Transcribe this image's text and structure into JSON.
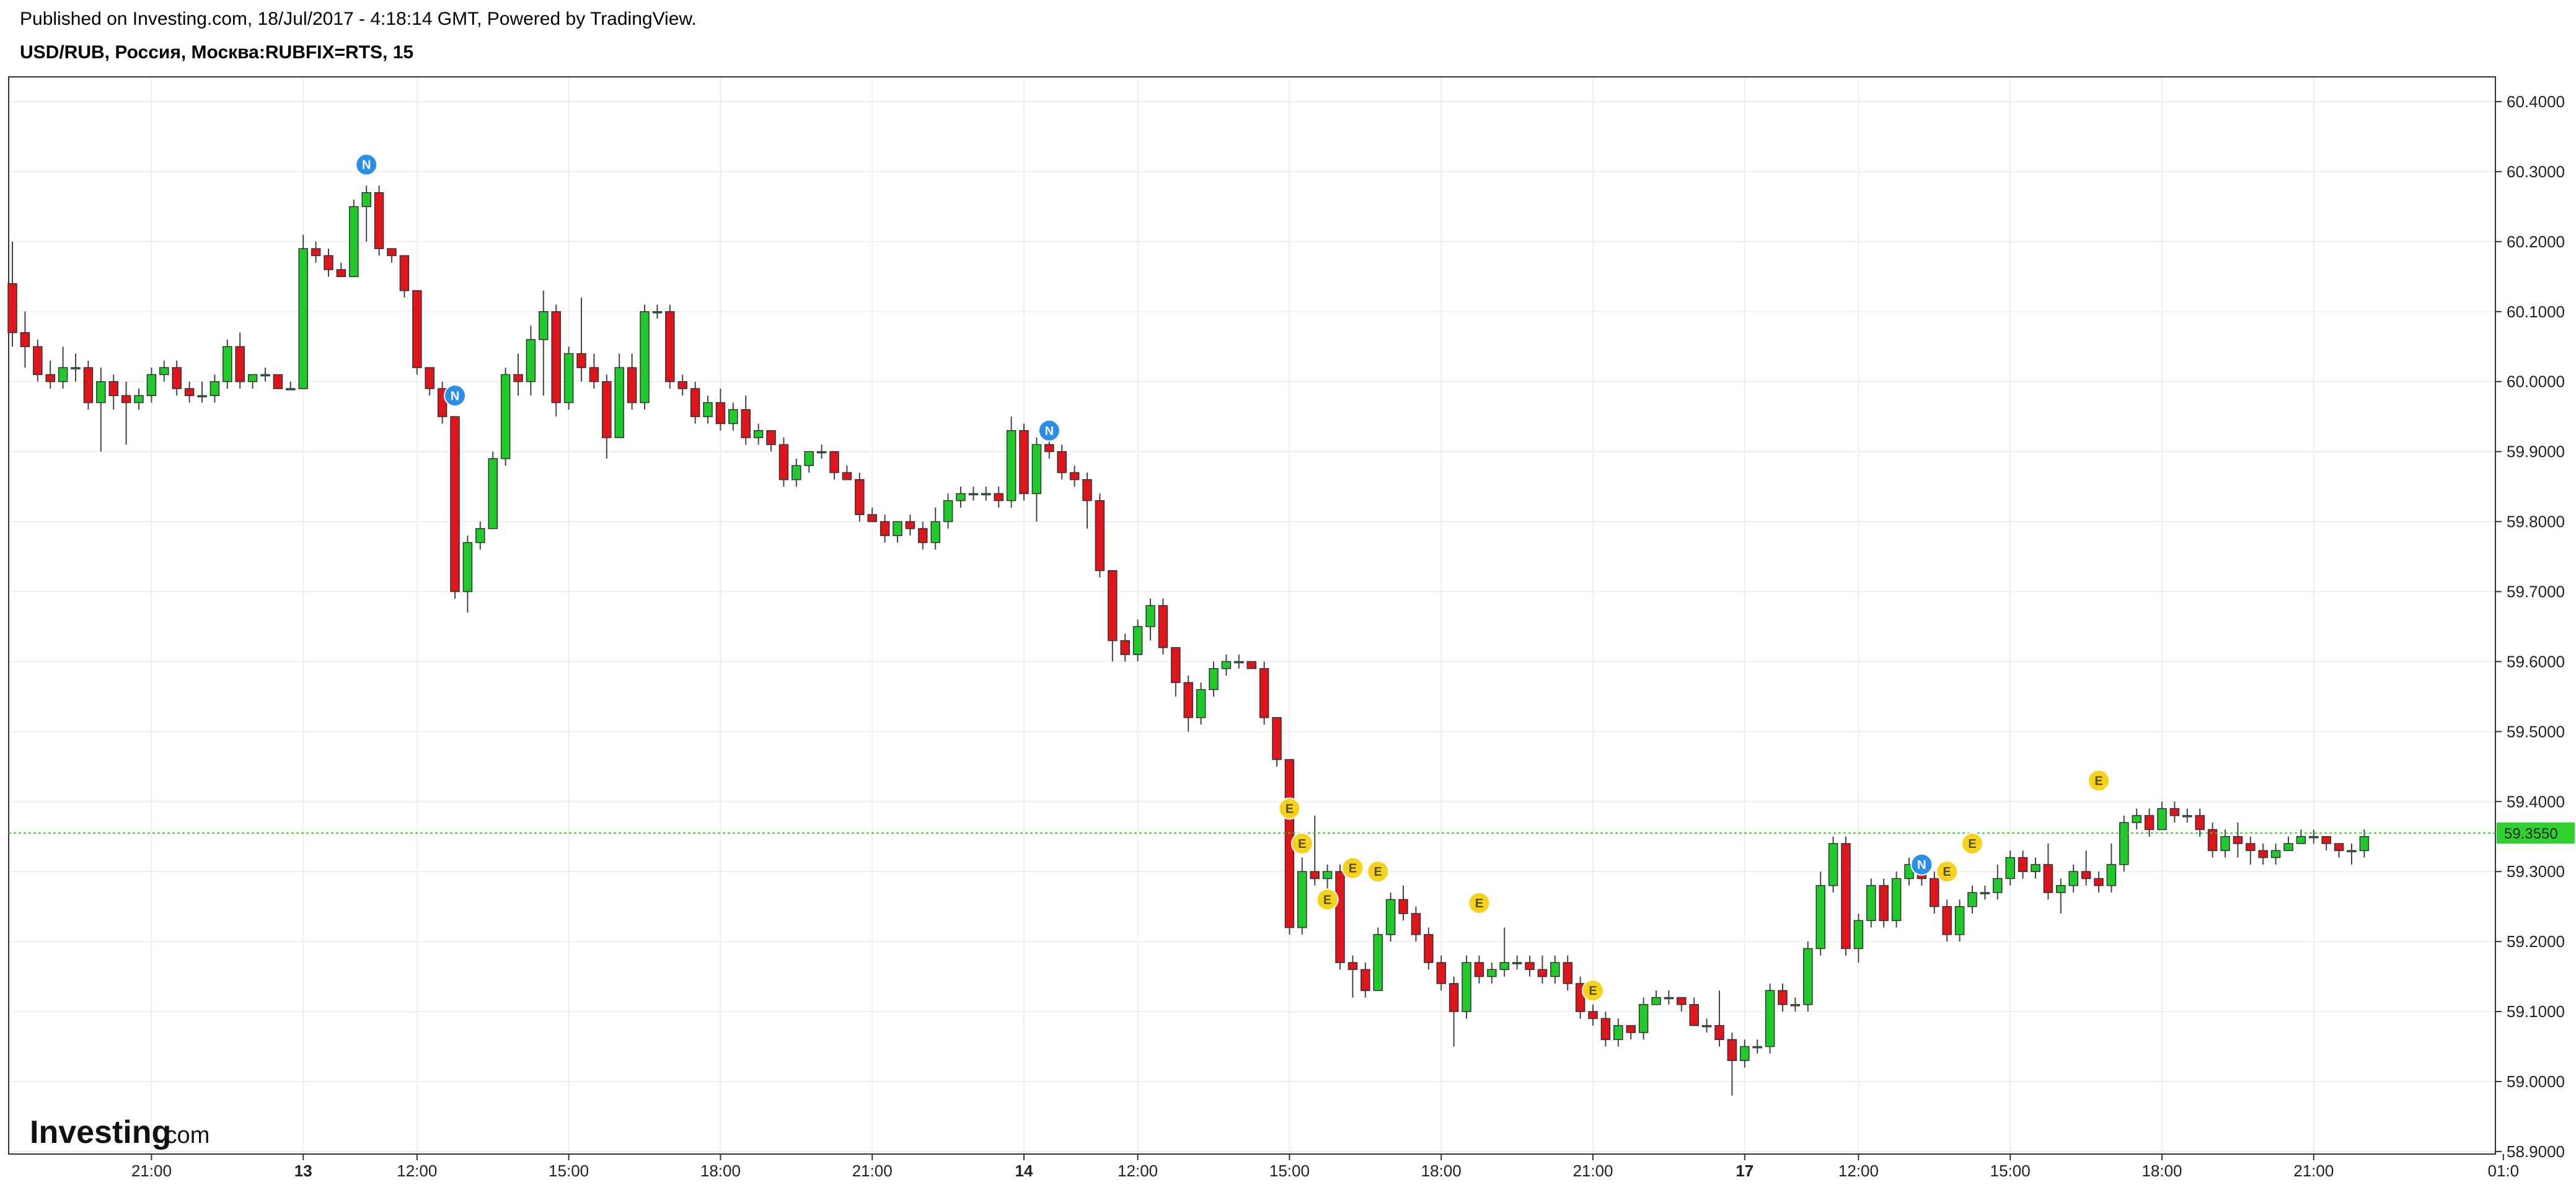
{
  "header": {
    "published": "Published on Investing.com, 18/Jul/2017 - 4:18:14 GMT, Powered by TradingView.",
    "symbol": "USD/RUB, Россия, Москва:RUBFIX=RTS, 15"
  },
  "logo": {
    "main": "Investing",
    "sub": ".com"
  },
  "colors": {
    "up": "#1ecb2a",
    "down": "#e0141b",
    "grid": "#eeeeee",
    "border": "#333333",
    "current_line": "#2ed12e",
    "news": "#2b8fea",
    "event": "#f7d21b"
  },
  "chart_data": {
    "type": "candlestick",
    "y_ticks": [
      "60.4000",
      "60.3000",
      "60.2000",
      "60.1000",
      "60.0000",
      "59.9000",
      "59.8000",
      "59.7000",
      "59.6000",
      "59.5000",
      "59.4000",
      "59.3000",
      "59.2000",
      "59.1000",
      "59.0000",
      "58.9000"
    ],
    "ylim": [
      58.89,
      60.43
    ],
    "x_ticks": [
      {
        "label": "21:00",
        "i": 11,
        "bold": false
      },
      {
        "label": "13",
        "i": 23,
        "bold": true
      },
      {
        "label": "12:00",
        "i": 32,
        "bold": false
      },
      {
        "label": "15:00",
        "i": 44,
        "bold": false
      },
      {
        "label": "18:00",
        "i": 56,
        "bold": false
      },
      {
        "label": "21:00",
        "i": 68,
        "bold": false
      },
      {
        "label": "14",
        "i": 80,
        "bold": true
      },
      {
        "label": "12:00",
        "i": 89,
        "bold": false
      },
      {
        "label": "15:00",
        "i": 101,
        "bold": false
      },
      {
        "label": "18:00",
        "i": 113,
        "bold": false
      },
      {
        "label": "21:00",
        "i": 125,
        "bold": false
      },
      {
        "label": "17",
        "i": 137,
        "bold": true
      },
      {
        "label": "12:00",
        "i": 146,
        "bold": false
      },
      {
        "label": "15:00",
        "i": 158,
        "bold": false
      },
      {
        "label": "18:00",
        "i": 170,
        "bold": false
      },
      {
        "label": "21:00",
        "i": 182,
        "bold": false
      },
      {
        "label": "01:0",
        "i": 197,
        "bold": false
      }
    ],
    "current_price": 59.355,
    "current_price_label": "59.3550",
    "candles": [
      [
        60.14,
        60.07,
        60.2,
        60.05
      ],
      [
        60.07,
        60.05,
        60.1,
        60.02
      ],
      [
        60.05,
        60.01,
        60.06,
        60.0
      ],
      [
        60.01,
        60.0,
        60.03,
        59.99
      ],
      [
        60.0,
        60.02,
        60.05,
        59.99
      ],
      [
        60.02,
        60.02,
        60.04,
        60.0
      ],
      [
        60.02,
        59.97,
        60.03,
        59.96
      ],
      [
        59.97,
        60.0,
        60.02,
        59.9
      ],
      [
        60.0,
        59.98,
        60.01,
        59.96
      ],
      [
        59.98,
        59.97,
        60.0,
        59.91
      ],
      [
        59.97,
        59.98,
        59.99,
        59.96
      ],
      [
        59.98,
        60.01,
        60.02,
        59.97
      ],
      [
        60.01,
        60.02,
        60.03,
        60.0
      ],
      [
        60.02,
        59.99,
        60.03,
        59.98
      ],
      [
        59.99,
        59.98,
        60.0,
        59.97
      ],
      [
        59.98,
        59.98,
        60.0,
        59.97
      ],
      [
        59.98,
        60.0,
        60.01,
        59.97
      ],
      [
        60.0,
        60.05,
        60.06,
        59.99
      ],
      [
        60.05,
        60.0,
        60.07,
        59.99
      ],
      [
        60.0,
        60.01,
        60.01,
        59.99
      ],
      [
        60.01,
        60.01,
        60.02,
        60.0
      ],
      [
        60.01,
        59.99,
        60.01,
        59.99
      ],
      [
        59.99,
        59.99,
        60.0,
        59.99
      ],
      [
        59.99,
        60.19,
        60.21,
        59.99
      ],
      [
        60.19,
        60.18,
        60.2,
        60.17
      ],
      [
        60.18,
        60.16,
        60.19,
        60.15
      ],
      [
        60.16,
        60.15,
        60.17,
        60.15
      ],
      [
        60.15,
        60.25,
        60.26,
        60.15
      ],
      [
        60.25,
        60.27,
        60.28,
        60.2
      ],
      [
        60.27,
        60.19,
        60.28,
        60.18
      ],
      [
        60.19,
        60.18,
        60.19,
        60.17
      ],
      [
        60.18,
        60.13,
        60.18,
        60.12
      ],
      [
        60.13,
        60.02,
        60.13,
        60.01
      ],
      [
        60.02,
        59.99,
        60.02,
        59.98
      ],
      [
        59.99,
        59.95,
        60.0,
        59.94
      ],
      [
        59.95,
        59.7,
        59.95,
        59.69
      ],
      [
        59.7,
        59.77,
        59.78,
        59.67
      ],
      [
        59.77,
        59.79,
        59.8,
        59.76
      ],
      [
        59.79,
        59.89,
        59.9,
        59.79
      ],
      [
        59.89,
        60.01,
        60.02,
        59.88
      ],
      [
        60.01,
        60.0,
        60.04,
        59.98
      ],
      [
        60.0,
        60.06,
        60.08,
        59.98
      ],
      [
        60.06,
        60.1,
        60.13,
        59.98
      ],
      [
        60.1,
        59.97,
        60.11,
        59.95
      ],
      [
        59.97,
        60.04,
        60.05,
        59.96
      ],
      [
        60.04,
        60.02,
        60.12,
        60.0
      ],
      [
        60.02,
        60.0,
        60.04,
        59.99
      ],
      [
        60.0,
        59.92,
        60.01,
        59.89
      ],
      [
        59.92,
        60.02,
        60.04,
        59.92
      ],
      [
        60.02,
        59.97,
        60.04,
        59.96
      ],
      [
        59.97,
        60.1,
        60.11,
        59.96
      ],
      [
        60.1,
        60.1,
        60.11,
        60.09
      ],
      [
        60.1,
        60.0,
        60.11,
        59.99
      ],
      [
        60.0,
        59.99,
        60.01,
        59.98
      ],
      [
        59.99,
        59.95,
        60.0,
        59.94
      ],
      [
        59.95,
        59.97,
        59.98,
        59.94
      ],
      [
        59.97,
        59.94,
        59.99,
        59.93
      ],
      [
        59.94,
        59.96,
        59.97,
        59.93
      ],
      [
        59.96,
        59.92,
        59.98,
        59.91
      ],
      [
        59.92,
        59.93,
        59.94,
        59.91
      ],
      [
        59.93,
        59.91,
        59.93,
        59.9
      ],
      [
        59.91,
        59.86,
        59.92,
        59.85
      ],
      [
        59.86,
        59.88,
        59.89,
        59.85
      ],
      [
        59.88,
        59.9,
        59.9,
        59.87
      ],
      [
        59.9,
        59.9,
        59.91,
        59.89
      ],
      [
        59.9,
        59.87,
        59.9,
        59.86
      ],
      [
        59.87,
        59.86,
        59.88,
        59.86
      ],
      [
        59.86,
        59.81,
        59.87,
        59.8
      ],
      [
        59.81,
        59.8,
        59.82,
        59.8
      ],
      [
        59.8,
        59.78,
        59.81,
        59.77
      ],
      [
        59.78,
        59.8,
        59.8,
        59.77
      ],
      [
        59.8,
        59.79,
        59.81,
        59.78
      ],
      [
        59.79,
        59.77,
        59.8,
        59.76
      ],
      [
        59.77,
        59.8,
        59.82,
        59.76
      ],
      [
        59.8,
        59.83,
        59.84,
        59.79
      ],
      [
        59.83,
        59.84,
        59.85,
        59.82
      ],
      [
        59.84,
        59.84,
        59.85,
        59.83
      ],
      [
        59.84,
        59.84,
        59.85,
        59.83
      ],
      [
        59.84,
        59.83,
        59.85,
        59.82
      ],
      [
        59.83,
        59.93,
        59.95,
        59.82
      ],
      [
        59.93,
        59.84,
        59.94,
        59.83
      ],
      [
        59.84,
        59.91,
        59.92,
        59.8
      ],
      [
        59.91,
        59.9,
        59.92,
        59.89
      ],
      [
        59.9,
        59.87,
        59.91,
        59.86
      ],
      [
        59.87,
        59.86,
        59.88,
        59.85
      ],
      [
        59.86,
        59.83,
        59.87,
        59.79
      ],
      [
        59.83,
        59.73,
        59.84,
        59.72
      ],
      [
        59.73,
        59.63,
        59.73,
        59.6
      ],
      [
        59.63,
        59.61,
        59.64,
        59.6
      ],
      [
        59.61,
        59.65,
        59.66,
        59.6
      ],
      [
        59.65,
        59.68,
        59.69,
        59.63
      ],
      [
        59.68,
        59.62,
        59.69,
        59.61
      ],
      [
        59.62,
        59.57,
        59.62,
        59.55
      ],
      [
        59.57,
        59.52,
        59.58,
        59.5
      ],
      [
        59.52,
        59.56,
        59.57,
        59.51
      ],
      [
        59.56,
        59.59,
        59.6,
        59.55
      ],
      [
        59.59,
        59.6,
        59.61,
        59.58
      ],
      [
        59.6,
        59.6,
        59.61,
        59.59
      ],
      [
        59.6,
        59.59,
        59.6,
        59.59
      ],
      [
        59.59,
        59.52,
        59.6,
        59.51
      ],
      [
        59.52,
        59.46,
        59.52,
        59.45
      ],
      [
        59.46,
        59.22,
        59.46,
        59.21
      ],
      [
        59.22,
        59.3,
        59.32,
        59.21
      ],
      [
        59.3,
        59.29,
        59.38,
        59.28
      ],
      [
        59.29,
        59.3,
        59.31,
        59.25
      ],
      [
        59.3,
        59.17,
        59.31,
        59.16
      ],
      [
        59.17,
        59.16,
        59.18,
        59.12
      ],
      [
        59.16,
        59.13,
        59.17,
        59.12
      ],
      [
        59.13,
        59.21,
        59.22,
        59.13
      ],
      [
        59.21,
        59.26,
        59.27,
        59.2
      ],
      [
        59.26,
        59.24,
        59.28,
        59.23
      ],
      [
        59.24,
        59.21,
        59.25,
        59.2
      ],
      [
        59.21,
        59.17,
        59.22,
        59.16
      ],
      [
        59.17,
        59.14,
        59.18,
        59.13
      ],
      [
        59.14,
        59.1,
        59.15,
        59.05
      ],
      [
        59.1,
        59.17,
        59.18,
        59.09
      ],
      [
        59.17,
        59.15,
        59.18,
        59.14
      ],
      [
        59.15,
        59.16,
        59.17,
        59.14
      ],
      [
        59.16,
        59.17,
        59.22,
        59.15
      ],
      [
        59.17,
        59.17,
        59.18,
        59.16
      ],
      [
        59.17,
        59.16,
        59.18,
        59.15
      ],
      [
        59.16,
        59.15,
        59.18,
        59.14
      ],
      [
        59.15,
        59.17,
        59.18,
        59.14
      ],
      [
        59.17,
        59.14,
        59.18,
        59.13
      ],
      [
        59.14,
        59.1,
        59.15,
        59.09
      ],
      [
        59.1,
        59.09,
        59.11,
        59.08
      ],
      [
        59.09,
        59.06,
        59.1,
        59.05
      ],
      [
        59.06,
        59.08,
        59.09,
        59.05
      ],
      [
        59.08,
        59.07,
        59.08,
        59.06
      ],
      [
        59.07,
        59.11,
        59.12,
        59.06
      ],
      [
        59.11,
        59.12,
        59.13,
        59.11
      ],
      [
        59.12,
        59.12,
        59.13,
        59.11
      ],
      [
        59.12,
        59.11,
        59.12,
        59.1
      ],
      [
        59.11,
        59.08,
        59.12,
        59.08
      ],
      [
        59.08,
        59.08,
        59.09,
        59.07
      ],
      [
        59.08,
        59.06,
        59.13,
        59.05
      ],
      [
        59.06,
        59.03,
        59.07,
        58.98
      ],
      [
        59.03,
        59.05,
        59.06,
        59.02
      ],
      [
        59.05,
        59.05,
        59.06,
        59.04
      ],
      [
        59.05,
        59.13,
        59.14,
        59.04
      ],
      [
        59.13,
        59.11,
        59.14,
        59.1
      ],
      [
        59.11,
        59.11,
        59.12,
        59.1
      ],
      [
        59.11,
        59.19,
        59.2,
        59.1
      ],
      [
        59.19,
        59.28,
        59.3,
        59.18
      ],
      [
        59.28,
        59.34,
        59.35,
        59.27
      ],
      [
        59.34,
        59.19,
        59.35,
        59.18
      ],
      [
        59.19,
        59.23,
        59.24,
        59.17
      ],
      [
        59.23,
        59.28,
        59.29,
        59.22
      ],
      [
        59.28,
        59.23,
        59.29,
        59.22
      ],
      [
        59.23,
        59.29,
        59.3,
        59.22
      ],
      [
        59.29,
        59.31,
        59.32,
        59.28
      ],
      [
        59.31,
        59.29,
        59.32,
        59.28
      ],
      [
        59.29,
        59.25,
        59.3,
        59.24
      ],
      [
        59.25,
        59.21,
        59.26,
        59.2
      ],
      [
        59.21,
        59.25,
        59.26,
        59.2
      ],
      [
        59.25,
        59.27,
        59.28,
        59.24
      ],
      [
        59.27,
        59.27,
        59.28,
        59.26
      ],
      [
        59.27,
        59.29,
        59.31,
        59.26
      ],
      [
        59.29,
        59.32,
        59.33,
        59.28
      ],
      [
        59.32,
        59.3,
        59.33,
        59.29
      ],
      [
        59.3,
        59.31,
        59.32,
        59.29
      ],
      [
        59.31,
        59.27,
        59.34,
        59.26
      ],
      [
        59.27,
        59.28,
        59.29,
        59.24
      ],
      [
        59.28,
        59.3,
        59.31,
        59.27
      ],
      [
        59.3,
        59.29,
        59.33,
        59.28
      ],
      [
        59.29,
        59.28,
        59.3,
        59.27
      ],
      [
        59.28,
        59.31,
        59.34,
        59.27
      ],
      [
        59.31,
        59.37,
        59.38,
        59.3
      ],
      [
        59.37,
        59.38,
        59.39,
        59.36
      ],
      [
        59.38,
        59.36,
        59.39,
        59.35
      ],
      [
        59.36,
        59.39,
        59.4,
        59.36
      ],
      [
        59.39,
        59.38,
        59.4,
        59.37
      ],
      [
        59.38,
        59.38,
        59.39,
        59.37
      ],
      [
        59.38,
        59.36,
        59.39,
        59.35
      ],
      [
        59.36,
        59.33,
        59.37,
        59.32
      ],
      [
        59.33,
        59.35,
        59.36,
        59.32
      ],
      [
        59.35,
        59.34,
        59.37,
        59.32
      ],
      [
        59.34,
        59.33,
        59.35,
        59.31
      ],
      [
        59.33,
        59.32,
        59.34,
        59.31
      ],
      [
        59.32,
        59.33,
        59.34,
        59.31
      ],
      [
        59.33,
        59.34,
        59.35,
        59.33
      ],
      [
        59.34,
        59.35,
        59.36,
        59.34
      ],
      [
        59.35,
        59.35,
        59.36,
        59.34
      ],
      [
        59.35,
        59.34,
        59.35,
        59.33
      ],
      [
        59.34,
        59.33,
        59.34,
        59.32
      ],
      [
        59.33,
        59.33,
        59.34,
        59.31
      ],
      [
        59.33,
        59.35,
        59.36,
        59.32
      ]
    ],
    "markers": [
      {
        "type": "N",
        "i": 28,
        "price": 60.31
      },
      {
        "type": "N",
        "i": 35,
        "price": 59.98
      },
      {
        "type": "N",
        "i": 82,
        "price": 59.93
      },
      {
        "type": "E",
        "i": 101,
        "price": 59.39
      },
      {
        "type": "E",
        "i": 102,
        "price": 59.34
      },
      {
        "type": "E",
        "i": 104,
        "price": 59.26
      },
      {
        "type": "E",
        "i": 106,
        "price": 59.305
      },
      {
        "type": "E",
        "i": 108,
        "price": 59.3
      },
      {
        "type": "E",
        "i": 116,
        "price": 59.255
      },
      {
        "type": "E",
        "i": 125,
        "price": 59.13
      },
      {
        "type": "N",
        "i": 151,
        "price": 59.31
      },
      {
        "type": "E",
        "i": 153,
        "price": 59.3
      },
      {
        "type": "E",
        "i": 155,
        "price": 59.34
      },
      {
        "type": "E",
        "i": 165,
        "price": 59.43
      }
    ]
  }
}
